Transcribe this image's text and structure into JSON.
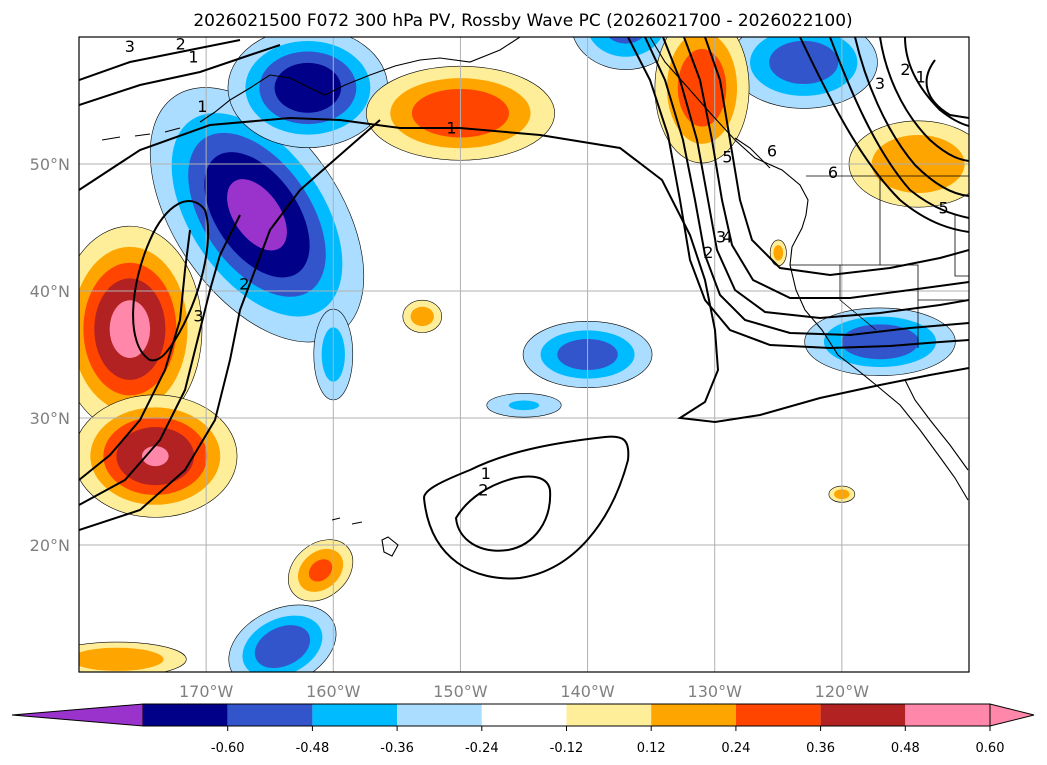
{
  "figure": {
    "title": "2026021500 F072 300 hPa PV, Rossby Wave PC (2026021700 - 2026022100)"
  },
  "map": {
    "lon_range": [
      -180,
      -110
    ],
    "lat_range": [
      10,
      60
    ],
    "lon_ticks": [
      {
        "value": -170,
        "label": "170°W"
      },
      {
        "value": -160,
        "label": "160°W"
      },
      {
        "value": -150,
        "label": "150°W"
      },
      {
        "value": -140,
        "label": "140°W"
      },
      {
        "value": -130,
        "label": "130°W"
      },
      {
        "value": -120,
        "label": "120°W"
      }
    ],
    "lat_ticks": [
      {
        "value": 20,
        "label": "20°N"
      },
      {
        "value": 30,
        "label": "30°N"
      },
      {
        "value": 40,
        "label": "40°N"
      },
      {
        "value": 50,
        "label": "50°N"
      }
    ],
    "grid_color": "#b0b0b0",
    "coast_color": "#000000"
  },
  "colorbar": {
    "ticks": [
      "-0.60",
      "-0.48",
      "-0.36",
      "-0.24",
      "-0.12",
      "0.12",
      "0.24",
      "0.36",
      "0.48",
      "0.60"
    ],
    "under_color": "#9933cc",
    "over_color": "#ff88aa",
    "bins": [
      "#000088",
      "#3355cc",
      "#00bbff",
      "#aaddff",
      "#ffffff",
      "#ffee99",
      "#ffa500",
      "#ff4500",
      "#b22222",
      "#ff88aa"
    ]
  },
  "chart_data": {
    "type": "contour",
    "field": "300 hPa PV anomaly (Rossby Wave PC)",
    "anomaly_blobs": [
      {
        "lon": -166,
        "lat": 46,
        "value": -0.62,
        "sx": 4,
        "sy": 7,
        "rot": 35
      },
      {
        "lon": -162,
        "lat": 56,
        "value": -0.55,
        "sx": 4,
        "sy": 3,
        "rot": 0
      },
      {
        "lon": -137,
        "lat": 61,
        "value": -0.4,
        "sx": 3,
        "sy": 2.5,
        "rot": 0
      },
      {
        "lon": -123,
        "lat": 58,
        "value": -0.42,
        "sx": 4,
        "sy": 2.5,
        "rot": 0
      },
      {
        "lon": -140,
        "lat": 35,
        "value": -0.42,
        "sx": 3.5,
        "sy": 1.8,
        "rot": 0
      },
      {
        "lon": -117,
        "lat": 36,
        "value": -0.45,
        "sx": 4,
        "sy": 1.8,
        "rot": 0
      },
      {
        "lon": -160,
        "lat": 35,
        "value": -0.3,
        "sx": 1.2,
        "sy": 2.8,
        "rot": 0
      },
      {
        "lon": -145,
        "lat": 31,
        "value": -0.25,
        "sx": 2.5,
        "sy": 0.8,
        "rot": 0
      },
      {
        "lon": -164,
        "lat": 12,
        "value": -0.45,
        "sx": 3,
        "sy": 2,
        "rot": 25
      },
      {
        "lon": -150,
        "lat": 54,
        "value": 0.45,
        "sx": 5,
        "sy": 2.5,
        "rot": 0
      },
      {
        "lon": -131,
        "lat": 56,
        "value": 0.45,
        "sx": 2.5,
        "sy": 4,
        "rot": 0
      },
      {
        "lon": -176,
        "lat": 37,
        "value": 0.62,
        "sx": 3.5,
        "sy": 5,
        "rot": 0
      },
      {
        "lon": -174,
        "lat": 27,
        "value": 0.6,
        "sx": 4,
        "sy": 3,
        "rot": 0
      },
      {
        "lon": -161,
        "lat": 18,
        "value": 0.38,
        "sx": 2,
        "sy": 1.5,
        "rot": 40
      },
      {
        "lon": -114,
        "lat": 50,
        "value": 0.35,
        "sx": 4,
        "sy": 2.5,
        "rot": 0
      },
      {
        "lon": -177,
        "lat": 11,
        "value": 0.35,
        "sx": 4,
        "sy": 1,
        "rot": 0
      },
      {
        "lon": -153,
        "lat": 38,
        "value": 0.3,
        "sx": 1.2,
        "sy": 1,
        "rot": 0
      },
      {
        "lon": -125,
        "lat": 43,
        "value": 0.3,
        "sx": 0.5,
        "sy": 0.8,
        "rot": 0
      },
      {
        "lon": -120,
        "lat": 24,
        "value": 0.3,
        "sx": 0.8,
        "sy": 0.5,
        "rot": 0
      }
    ],
    "pc_contour_labels": [
      {
        "text": "1",
        "lon": -150.7,
        "lat": 52.8
      },
      {
        "text": "1",
        "lon": -170.3,
        "lat": 54.5
      },
      {
        "text": "1",
        "lon": -171.0,
        "lat": 58.4
      },
      {
        "text": "2",
        "lon": -172.0,
        "lat": 59.4
      },
      {
        "text": "3",
        "lon": -176.0,
        "lat": 59.2
      },
      {
        "text": "1",
        "lon": -148.0,
        "lat": 25.6
      },
      {
        "text": "2",
        "lon": -148.2,
        "lat": 24.3
      },
      {
        "text": "2",
        "lon": -130.5,
        "lat": 43.0
      },
      {
        "text": "3",
        "lon": -129.5,
        "lat": 44.2
      },
      {
        "text": "4",
        "lon": -129.0,
        "lat": 44.2
      },
      {
        "text": "5",
        "lon": -129.0,
        "lat": 50.5
      },
      {
        "text": "6",
        "lon": -125.5,
        "lat": 51.0
      },
      {
        "text": "6",
        "lon": -120.7,
        "lat": 49.3
      },
      {
        "text": "5",
        "lon": -112.0,
        "lat": 46.5
      },
      {
        "text": "3",
        "lon": -117.0,
        "lat": 56.3
      },
      {
        "text": "2",
        "lon": -115.0,
        "lat": 57.4
      },
      {
        "text": "1",
        "lon": -113.8,
        "lat": 56.8
      },
      {
        "text": "2",
        "lon": -167.0,
        "lat": 40.5
      },
      {
        "text": "3",
        "lon": -170.6,
        "lat": 38.0
      }
    ]
  }
}
